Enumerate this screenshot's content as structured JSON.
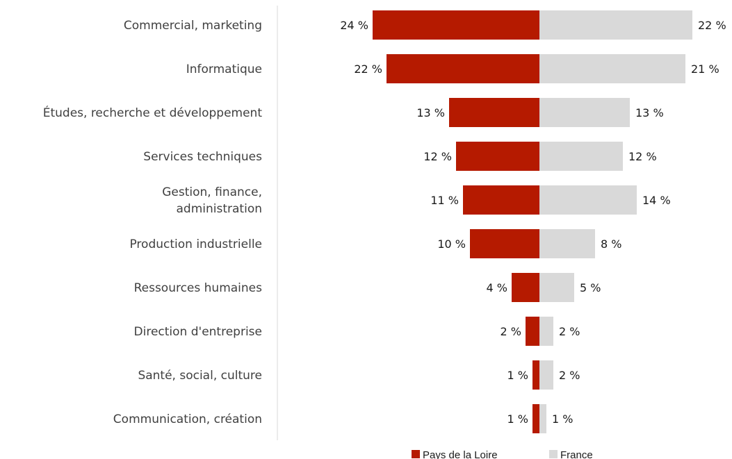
{
  "chart_data": {
    "type": "bar",
    "orientation": "horizontal-diverging",
    "categories": [
      [
        "Commercial, marketing"
      ],
      [
        "Informatique"
      ],
      [
        "Études, recherche et développement"
      ],
      [
        "Services techniques"
      ],
      [
        "Gestion, finance,",
        "administration"
      ],
      [
        "Production industrielle"
      ],
      [
        "Ressources humaines"
      ],
      [
        "Direction d'entreprise"
      ],
      [
        "Santé, social, culture"
      ],
      [
        "Communication, création"
      ]
    ],
    "series": [
      {
        "name": "Pays de la Loire",
        "color": "#b51a00",
        "side": "left",
        "values": [
          24,
          22,
          13,
          12,
          11,
          10,
          4,
          2,
          1,
          1
        ],
        "labels": [
          "24 %",
          "22 %",
          "13 %",
          "12 %",
          "11 %",
          "10 %",
          "4 %",
          "2 %",
          "1 %",
          "1 %"
        ]
      },
      {
        "name": "France",
        "color": "#d9d9d9",
        "side": "right",
        "values": [
          22,
          21,
          13,
          12,
          14,
          8,
          5,
          2,
          2,
          1
        ],
        "labels": [
          "22 %",
          "21 %",
          "13 %",
          "12 %",
          "14 %",
          "8 %",
          "5 %",
          "2 %",
          "2 %",
          "1 %"
        ]
      }
    ],
    "title": "",
    "xlabel": "",
    "ylabel": "",
    "xlim": [
      -24,
      22
    ],
    "grid": false,
    "legend": "bottom-center"
  }
}
